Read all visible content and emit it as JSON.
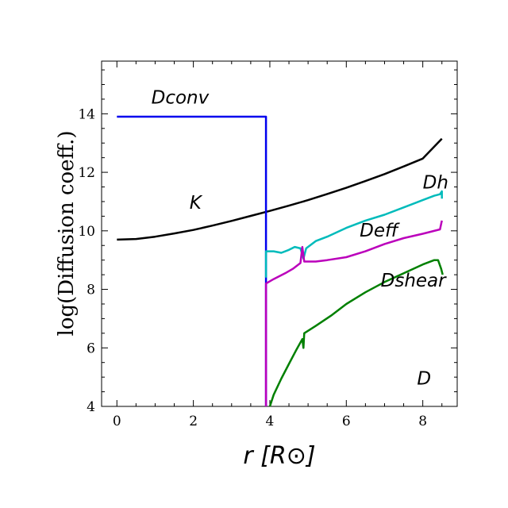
{
  "chart_data": {
    "type": "line",
    "title": "",
    "xlabel": "r [R⊙]",
    "ylabel": "log(Diffusion coeff.)",
    "xlim": [
      -0.4,
      8.9
    ],
    "ylim": [
      4,
      15.8
    ],
    "xticks": [
      0,
      2,
      4,
      6,
      8
    ],
    "yticks": [
      4,
      6,
      8,
      10,
      12,
      14
    ],
    "grid": false,
    "annotations": [
      {
        "text": "Dconv",
        "x": 0.9,
        "y": 14.35
      },
      {
        "text": "K",
        "x": 1.9,
        "y": 10.75
      },
      {
        "text": "Dh",
        "x": 8.0,
        "y": 11.45
      },
      {
        "text": "Deff",
        "x": 6.35,
        "y": 9.8
      },
      {
        "text": "Dshear",
        "x": 6.9,
        "y": 8.1
      },
      {
        "text": "D",
        "x": 7.85,
        "y": 4.75
      }
    ],
    "series": [
      {
        "name": "K",
        "color": "#000000",
        "points": [
          [
            0,
            9.7
          ],
          [
            0.5,
            9.72
          ],
          [
            1,
            9.8
          ],
          [
            1.5,
            9.91
          ],
          [
            2,
            10.03
          ],
          [
            2.5,
            10.18
          ],
          [
            3,
            10.34
          ],
          [
            3.5,
            10.51
          ],
          [
            4,
            10.68
          ],
          [
            4.5,
            10.86
          ],
          [
            5,
            11.05
          ],
          [
            5.5,
            11.26
          ],
          [
            6,
            11.47
          ],
          [
            6.5,
            11.7
          ],
          [
            7,
            11.94
          ],
          [
            7.5,
            12.2
          ],
          [
            8,
            12.47
          ],
          [
            8.5,
            13.15
          ]
        ]
      },
      {
        "name": "Dconv",
        "color": "#0000ee",
        "points": [
          [
            0,
            13.9
          ],
          [
            3.9,
            13.9
          ],
          [
            3.9,
            4
          ]
        ]
      },
      {
        "name": "Dh",
        "color": "#00bbbb",
        "points": [
          [
            3.9,
            8.4
          ],
          [
            3.9,
            9.3
          ],
          [
            4.1,
            9.3
          ],
          [
            4.3,
            9.25
          ],
          [
            4.5,
            9.35
          ],
          [
            4.65,
            9.45
          ],
          [
            4.8,
            9.4
          ],
          [
            4.88,
            9.05
          ],
          [
            4.95,
            9.4
          ],
          [
            5.2,
            9.65
          ],
          [
            5.5,
            9.8
          ],
          [
            6,
            10.1
          ],
          [
            6.5,
            10.35
          ],
          [
            7,
            10.55
          ],
          [
            7.5,
            10.8
          ],
          [
            8,
            11.05
          ],
          [
            8.3,
            11.2
          ],
          [
            8.45,
            11.25
          ],
          [
            8.5,
            11.35
          ],
          [
            8.5,
            11.1
          ]
        ]
      },
      {
        "name": "Deff",
        "color": "#bb00bb",
        "points": [
          [
            3.9,
            4
          ],
          [
            3.9,
            8.2
          ],
          [
            4.1,
            8.35
          ],
          [
            4.4,
            8.55
          ],
          [
            4.6,
            8.7
          ],
          [
            4.8,
            8.9
          ],
          [
            4.85,
            9.45
          ],
          [
            4.9,
            8.95
          ],
          [
            5.2,
            8.95
          ],
          [
            5.5,
            9.0
          ],
          [
            6,
            9.1
          ],
          [
            6.5,
            9.3
          ],
          [
            7,
            9.55
          ],
          [
            7.5,
            9.75
          ],
          [
            8,
            9.9
          ],
          [
            8.45,
            10.05
          ],
          [
            8.5,
            10.35
          ]
        ]
      },
      {
        "name": "D",
        "color": "#008000",
        "points": [
          [
            4.0,
            4
          ],
          [
            4.1,
            4.4
          ],
          [
            4.3,
            4.95
          ],
          [
            4.5,
            5.45
          ],
          [
            4.7,
            5.95
          ],
          [
            4.85,
            6.3
          ],
          [
            4.88,
            6.0
          ],
          [
            4.9,
            6.5
          ],
          [
            5.2,
            6.75
          ],
          [
            5.6,
            7.1
          ],
          [
            6,
            7.5
          ],
          [
            6.5,
            7.9
          ],
          [
            7,
            8.25
          ],
          [
            7.5,
            8.55
          ],
          [
            8,
            8.85
          ],
          [
            8.3,
            9.0
          ],
          [
            8.4,
            9.0
          ],
          [
            8.48,
            8.7
          ],
          [
            8.52,
            8.5
          ]
        ]
      }
    ]
  }
}
